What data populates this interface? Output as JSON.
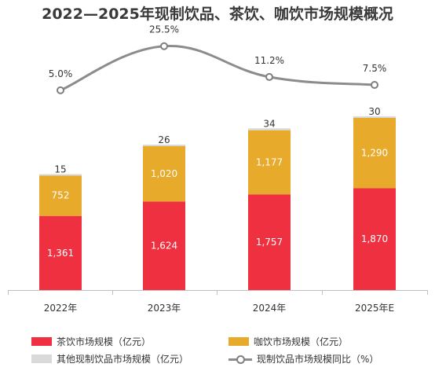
{
  "chart_data": {
    "type": "bar",
    "stacked": true,
    "title": "2022—2025年现制饮品、茶饮、咖饮市场规模概况",
    "categories": [
      "2022年",
      "2023年",
      "2024年",
      "2025年E"
    ],
    "series": [
      {
        "name": "茶饮市场规模（亿元）",
        "values": [
          1361,
          1624,
          1757,
          1870
        ],
        "color": "#ef3040",
        "labels": [
          "1,361",
          "1,624",
          "1,757",
          "1,870"
        ]
      },
      {
        "name": "咖饮市场规模（亿元）",
        "values": [
          752,
          1020,
          1177,
          1290
        ],
        "color": "#e8aa2a",
        "labels": [
          "752",
          "1,020",
          "1,177",
          "1,290"
        ]
      },
      {
        "name": "其他现制饮品市场规模（亿元）",
        "values": [
          15,
          26,
          34,
          30
        ],
        "color": "#d9d9d9",
        "labels": [
          "15",
          "26",
          "34",
          "30"
        ]
      }
    ],
    "line_series": {
      "name": "现制饮品市场规模同比（%）",
      "values": [
        5.0,
        25.5,
        11.2,
        7.5
      ],
      "labels": [
        "5.0%",
        "25.5%",
        "11.2%",
        "7.5%"
      ],
      "color": "#8c8c8c"
    },
    "legend_position": "bottom",
    "grid": false
  }
}
